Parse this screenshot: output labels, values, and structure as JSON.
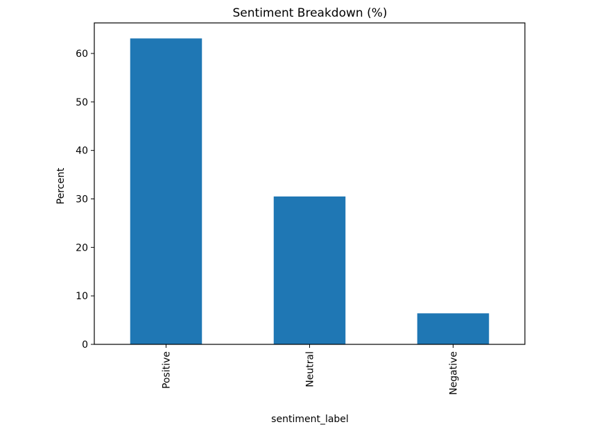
{
  "chart_data": {
    "type": "bar",
    "title": "Sentiment Breakdown (%)",
    "xlabel": "sentiment_label",
    "ylabel": "Percent",
    "categories": [
      "Positive",
      "Neutral",
      "Negative"
    ],
    "values": [
      63.1,
      30.5,
      6.4
    ],
    "ylim": [
      0,
      66.3
    ],
    "yticks": [
      0,
      10,
      20,
      30,
      40,
      50,
      60
    ],
    "ytick_labels": [
      "0",
      "10",
      "20",
      "30",
      "40",
      "50",
      "60"
    ],
    "grid": false,
    "legend": "none",
    "bar_color": "#1f77b4"
  }
}
